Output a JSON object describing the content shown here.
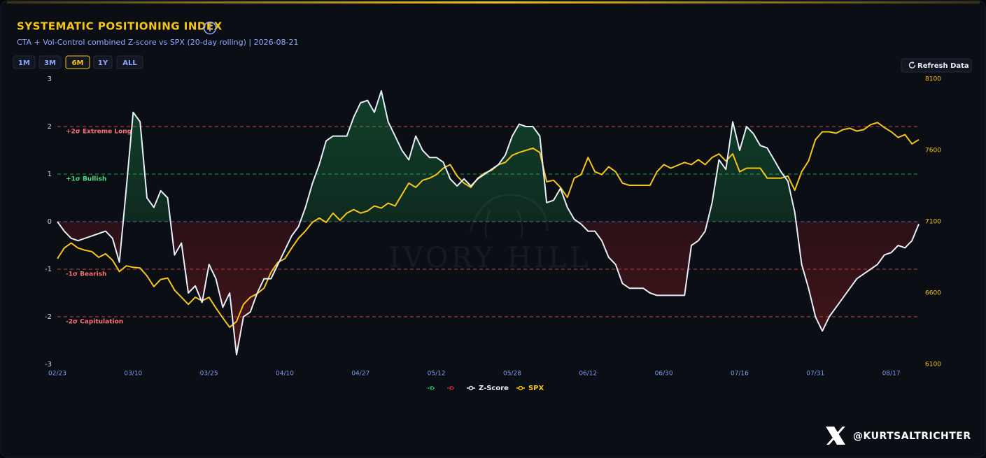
{
  "header": {
    "title": "SYSTEMATIC POSITIONING INDEX",
    "subtitle": "CTA + Vol-Control combined Z-score vs SPX (20-day rolling) | 2026-08-21",
    "ranges": [
      "1M",
      "3M",
      "6M",
      "1Y",
      "ALL"
    ],
    "active_range": "6M",
    "refresh": "Refresh Data"
  },
  "chart_data": {
    "type": "line",
    "categories": [
      "02/23",
      null,
      null,
      null,
      null,
      null,
      null,
      null,
      null,
      null,
      null,
      "03/10",
      null,
      null,
      null,
      null,
      null,
      null,
      null,
      null,
      null,
      null,
      "03/25",
      null,
      null,
      null,
      null,
      null,
      null,
      null,
      null,
      null,
      null,
      "04/10",
      null,
      null,
      null,
      null,
      null,
      null,
      null,
      null,
      null,
      null,
      "04/27",
      null,
      null,
      null,
      null,
      null,
      null,
      null,
      null,
      null,
      null,
      "05/12",
      null,
      null,
      null,
      null,
      null,
      null,
      null,
      null,
      null,
      null,
      "05/28",
      null,
      null,
      null,
      null,
      null,
      null,
      null,
      null,
      null,
      null,
      "06/12",
      null,
      null,
      null,
      null,
      null,
      null,
      null,
      null,
      null,
      null,
      "06/30",
      null,
      null,
      null,
      null,
      null,
      null,
      null,
      null,
      null,
      null,
      "07/16",
      null,
      null,
      null,
      null,
      null,
      null,
      null,
      null,
      null,
      null,
      "07/31",
      null,
      null,
      null,
      null,
      null,
      null,
      null,
      null,
      null,
      null,
      "08/17",
      null,
      null,
      null,
      null
    ],
    "series": [
      {
        "name": "Z-Score",
        "color": "#e8eef8",
        "values": [
          0,
          -0.2,
          -0.35,
          -0.4,
          -0.35,
          -0.3,
          -0.25,
          -0.2,
          -0.35,
          -0.85,
          0.7,
          2.3,
          2.1,
          0.5,
          0.3,
          0.65,
          0.5,
          -0.7,
          -0.45,
          -1.5,
          -1.35,
          -1.7,
          -0.9,
          -1.2,
          -1.8,
          -1.5,
          -2.8,
          -2.0,
          -1.9,
          -1.5,
          -1.2,
          -1.2,
          -0.9,
          -0.6,
          -0.3,
          -0.1,
          0.3,
          0.8,
          1.2,
          1.7,
          1.8,
          1.8,
          1.8,
          2.2,
          2.5,
          2.55,
          2.3,
          2.75,
          2.1,
          1.8,
          1.5,
          1.3,
          1.8,
          1.5,
          1.35,
          1.35,
          1.25,
          0.9,
          0.75,
          0.9,
          0.75,
          0.9,
          1.0,
          1.1,
          1.2,
          1.4,
          1.8,
          2.05,
          2.0,
          2.0,
          1.8,
          0.4,
          0.45,
          0.7,
          0.3,
          0.05,
          -0.05,
          -0.2,
          -0.2,
          -0.4,
          -0.75,
          -0.9,
          -1.3,
          -1.4,
          -1.4,
          -1.4,
          -1.5,
          -1.55,
          -1.55,
          -1.55,
          -1.55,
          -1.55,
          -0.5,
          -0.4,
          -0.2,
          0.4,
          1.3,
          1.1,
          2.1,
          1.5,
          2.0,
          1.85,
          1.6,
          1.55,
          1.3,
          1.05,
          0.85,
          0.2,
          -0.9,
          -1.4,
          -2.0,
          -2.3,
          -2.0,
          -1.8,
          -1.6,
          -1.4,
          -1.2,
          -1.1,
          -1.0,
          -0.9,
          -0.7,
          -0.65,
          -0.5,
          -0.55,
          -0.4,
          -0.05
        ]
      },
      {
        "name": "SPX",
        "color": "#f5c518",
        "axis": "y2",
        "values": [
          6840,
          6915,
          6950,
          6915,
          6900,
          6890,
          6850,
          6875,
          6830,
          6750,
          6790,
          6780,
          6775,
          6720,
          6645,
          6695,
          6705,
          6620,
          6570,
          6520,
          6570,
          6545,
          6570,
          6495,
          6425,
          6360,
          6400,
          6520,
          6570,
          6595,
          6635,
          6745,
          6815,
          6840,
          6915,
          6985,
          7035,
          7095,
          7125,
          7095,
          7160,
          7110,
          7160,
          7185,
          7160,
          7175,
          7210,
          7195,
          7230,
          7210,
          7290,
          7370,
          7340,
          7390,
          7405,
          7430,
          7475,
          7500,
          7420,
          7370,
          7340,
          7405,
          7440,
          7460,
          7500,
          7515,
          7565,
          7585,
          7600,
          7615,
          7585,
          7380,
          7390,
          7340,
          7270,
          7405,
          7430,
          7550,
          7450,
          7430,
          7485,
          7450,
          7370,
          7355,
          7355,
          7355,
          7355,
          7450,
          7500,
          7475,
          7495,
          7515,
          7500,
          7535,
          7500,
          7550,
          7575,
          7525,
          7575,
          7450,
          7475,
          7475,
          7475,
          7405,
          7405,
          7405,
          7420,
          7320,
          7450,
          7525,
          7675,
          7730,
          7730,
          7720,
          7745,
          7755,
          7735,
          7745,
          7780,
          7795,
          7760,
          7730,
          7690,
          7710,
          7645,
          7675
        ]
      }
    ],
    "ylim": [
      -3,
      3
    ],
    "yticks": [
      -3,
      -2,
      -1,
      0,
      1,
      2,
      3
    ],
    "y2lim": [
      6100,
      8100
    ],
    "y2ticks": [
      6100,
      6600,
      7100,
      7600,
      8100
    ],
    "reference_lines": [
      {
        "value": 2,
        "label": "+2σ Extreme Long",
        "color": "#e05252"
      },
      {
        "value": 1,
        "label": "+1σ Bullish",
        "color": "#22c55e"
      },
      {
        "value": 0,
        "color": "#6b7a99"
      },
      {
        "value": -1,
        "label": "-1σ Bearish",
        "color": "#e05252"
      },
      {
        "value": -2,
        "label": "-2σ Capitulation",
        "color": "#e05252"
      }
    ],
    "fill_above_color": "#22c55e",
    "fill_below_color": "#dc2626"
  },
  "watermark": "IVORY HILL",
  "footer": {
    "handle": "@KURTSALTRICHTER"
  }
}
